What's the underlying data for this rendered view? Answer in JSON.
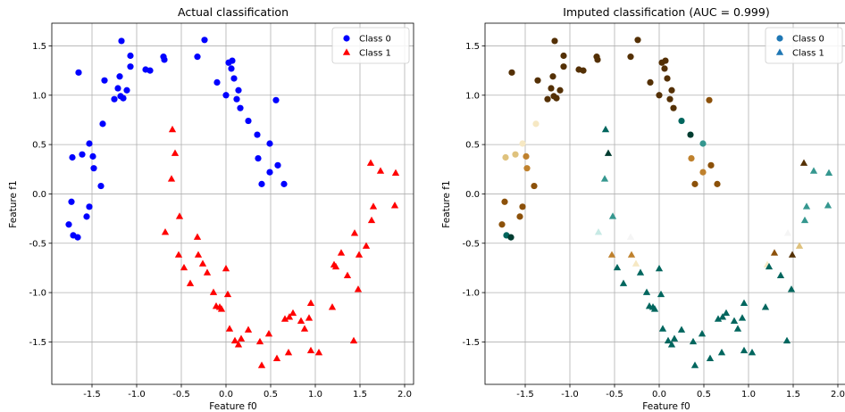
{
  "chart_data": [
    {
      "type": "scatter",
      "title": "Actual classification",
      "xlabel": "Feature f0",
      "ylabel": "Feature f1",
      "xlim": [
        -1.95,
        2.1
      ],
      "ylim": [
        -1.93,
        1.73
      ],
      "xticks": [
        "-1.5",
        "-1.0",
        "-0.5",
        "0.0",
        "0.5",
        "1.0",
        "1.5",
        "2.0"
      ],
      "yticks": [
        "1.5",
        "1.0",
        "0.5",
        "0.0",
        "-0.5",
        "-1.0",
        "-1.5"
      ],
      "grid": true,
      "legend_position": "top-right",
      "series": [
        {
          "name": "Class 0",
          "marker": "circle",
          "color": "#0000ff",
          "points": [
            [
              -1.17,
              1.55
            ],
            [
              -1.07,
              1.4
            ],
            [
              -0.9,
              1.26
            ],
            [
              -0.85,
              1.25
            ],
            [
              -0.7,
              1.39
            ],
            [
              -0.69,
              1.36
            ],
            [
              -0.32,
              1.39
            ],
            [
              -0.24,
              1.56
            ],
            [
              0.03,
              1.33
            ],
            [
              0.07,
              1.35
            ],
            [
              0.06,
              1.27
            ],
            [
              0.09,
              1.17
            ],
            [
              0.14,
              1.05
            ],
            [
              0.0,
              1.0
            ],
            [
              0.12,
              0.96
            ],
            [
              0.16,
              0.87
            ],
            [
              0.25,
              0.74
            ],
            [
              0.35,
              0.6
            ],
            [
              0.49,
              0.51
            ],
            [
              0.56,
              0.95
            ],
            [
              0.58,
              0.29
            ],
            [
              0.49,
              0.22
            ],
            [
              0.65,
              0.1
            ],
            [
              0.36,
              0.36
            ],
            [
              0.4,
              0.1
            ],
            [
              -0.1,
              1.13
            ],
            [
              -1.07,
              1.29
            ],
            [
              -1.21,
              1.07
            ],
            [
              -1.19,
              1.19
            ],
            [
              -1.36,
              1.15
            ],
            [
              -1.18,
              0.99
            ],
            [
              -1.15,
              0.97
            ],
            [
              -1.11,
              1.05
            ],
            [
              -1.65,
              1.23
            ],
            [
              -1.38,
              0.71
            ],
            [
              -1.53,
              0.51
            ],
            [
              -1.61,
              0.4
            ],
            [
              -1.49,
              0.38
            ],
            [
              -1.72,
              0.37
            ],
            [
              -1.48,
              0.26
            ],
            [
              -1.4,
              0.08
            ],
            [
              -1.73,
              -0.08
            ],
            [
              -1.53,
              -0.13
            ],
            [
              -1.56,
              -0.23
            ],
            [
              -1.76,
              -0.31
            ],
            [
              -1.71,
              -0.42
            ],
            [
              -1.66,
              -0.44
            ],
            [
              -1.25,
              0.96
            ]
          ]
        },
        {
          "name": "Class 1",
          "marker": "triangle",
          "color": "#ff0000",
          "points": [
            [
              -0.6,
              0.65
            ],
            [
              -0.57,
              0.41
            ],
            [
              -0.61,
              0.15
            ],
            [
              -0.52,
              -0.23
            ],
            [
              -0.68,
              -0.39
            ],
            [
              -0.53,
              -0.62
            ],
            [
              -0.32,
              -0.44
            ],
            [
              -0.31,
              -0.62
            ],
            [
              -0.47,
              -0.75
            ],
            [
              -0.4,
              -0.91
            ],
            [
              -0.26,
              -0.71
            ],
            [
              -0.21,
              -0.8
            ],
            [
              -0.14,
              -1.0
            ],
            [
              -0.11,
              -1.14
            ],
            [
              -0.07,
              -1.15
            ],
            [
              -0.05,
              -1.17
            ],
            [
              0.02,
              -1.02
            ],
            [
              0.0,
              -0.76
            ],
            [
              0.04,
              -1.37
            ],
            [
              0.1,
              -1.49
            ],
            [
              0.14,
              -1.53
            ],
            [
              0.17,
              -1.47
            ],
            [
              0.25,
              -1.38
            ],
            [
              0.38,
              -1.5
            ],
            [
              0.4,
              -1.74
            ],
            [
              0.48,
              -1.42
            ],
            [
              0.57,
              -1.67
            ],
            [
              0.66,
              -1.27
            ],
            [
              0.71,
              -1.25
            ],
            [
              0.75,
              -1.21
            ],
            [
              0.7,
              -1.61
            ],
            [
              0.84,
              -1.29
            ],
            [
              0.93,
              -1.26
            ],
            [
              0.88,
              -1.37
            ],
            [
              0.95,
              -1.11
            ],
            [
              0.95,
              -1.59
            ],
            [
              1.04,
              -1.61
            ],
            [
              1.19,
              -1.15
            ],
            [
              1.21,
              -0.72
            ],
            [
              1.23,
              -0.74
            ],
            [
              1.29,
              -0.6
            ],
            [
              1.36,
              -0.83
            ],
            [
              1.44,
              -0.4
            ],
            [
              1.48,
              -0.97
            ],
            [
              1.49,
              -0.62
            ],
            [
              1.57,
              -0.53
            ],
            [
              1.63,
              -0.27
            ],
            [
              1.65,
              -0.13
            ],
            [
              1.43,
              -1.49
            ],
            [
              1.62,
              0.31
            ],
            [
              1.73,
              0.23
            ],
            [
              1.9,
              0.21
            ],
            [
              1.89,
              -0.12
            ]
          ]
        }
      ]
    },
    {
      "type": "scatter",
      "title": "Imputed classification (AUC = 0.999)",
      "xlabel": "Feature f0",
      "ylabel": "Feature f1",
      "xlim": [
        -1.95,
        2.1
      ],
      "ylim": [
        -1.93,
        1.73
      ],
      "xticks": [
        "-1.5",
        "-1.0",
        "-0.5",
        "0.0",
        "0.5",
        "1.0",
        "1.5",
        "2.0"
      ],
      "yticks": [
        "1.5",
        "1.0",
        "0.5",
        "0.0",
        "-0.5",
        "-1.0",
        "-1.5"
      ],
      "grid": true,
      "legend_position": "top-right",
      "colors": {
        "dark_brown": "#543005",
        "mid_brown": "#8c510a",
        "tan": "#dfc27d",
        "light_tan": "#f6e8c3",
        "pale": "#f5f5f5",
        "light_teal": "#c7eae5",
        "mid_teal": "#35978f",
        "teal": "#01665e",
        "dark_teal": "#003c30",
        "legend_class0": "#1f77b4",
        "legend_class1": "#1f77b4"
      },
      "series": [
        {
          "name": "Class 0",
          "marker": "circle",
          "legend_color": "#1f77b4",
          "points": [
            [
              -1.17,
              1.55,
              "#543005"
            ],
            [
              -1.07,
              1.4,
              "#543005"
            ],
            [
              -0.9,
              1.26,
              "#543005"
            ],
            [
              -0.85,
              1.25,
              "#543005"
            ],
            [
              -0.7,
              1.39,
              "#543005"
            ],
            [
              -0.69,
              1.36,
              "#543005"
            ],
            [
              -0.32,
              1.39,
              "#543005"
            ],
            [
              -0.24,
              1.56,
              "#543005"
            ],
            [
              0.03,
              1.33,
              "#543005"
            ],
            [
              0.07,
              1.35,
              "#543005"
            ],
            [
              0.06,
              1.27,
              "#543005"
            ],
            [
              0.09,
              1.17,
              "#543005"
            ],
            [
              0.14,
              1.05,
              "#543005"
            ],
            [
              0.0,
              1.0,
              "#543005"
            ],
            [
              0.12,
              0.96,
              "#543005"
            ],
            [
              0.16,
              0.87,
              "#543005"
            ],
            [
              0.25,
              0.74,
              "#01665e"
            ],
            [
              0.35,
              0.6,
              "#003c30"
            ],
            [
              0.49,
              0.51,
              "#35978f"
            ],
            [
              0.56,
              0.95,
              "#8c510a"
            ],
            [
              0.58,
              0.29,
              "#8c510a"
            ],
            [
              0.49,
              0.22,
              "#bf812d"
            ],
            [
              0.65,
              0.1,
              "#8c510a"
            ],
            [
              0.36,
              0.36,
              "#bf812d"
            ],
            [
              0.4,
              0.1,
              "#8c510a"
            ],
            [
              -0.1,
              1.13,
              "#543005"
            ],
            [
              -1.07,
              1.29,
              "#543005"
            ],
            [
              -1.21,
              1.07,
              "#543005"
            ],
            [
              -1.19,
              1.19,
              "#543005"
            ],
            [
              -1.36,
              1.15,
              "#543005"
            ],
            [
              -1.18,
              0.99,
              "#543005"
            ],
            [
              -1.15,
              0.97,
              "#543005"
            ],
            [
              -1.11,
              1.05,
              "#543005"
            ],
            [
              -1.65,
              1.23,
              "#543005"
            ],
            [
              -1.38,
              0.71,
              "#f6e8c3"
            ],
            [
              -1.53,
              0.51,
              "#f6e8c3"
            ],
            [
              -1.61,
              0.4,
              "#dfc27d"
            ],
            [
              -1.49,
              0.38,
              "#bf812d"
            ],
            [
              -1.72,
              0.37,
              "#dfc27d"
            ],
            [
              -1.48,
              0.26,
              "#bf812d"
            ],
            [
              -1.4,
              0.08,
              "#8c510a"
            ],
            [
              -1.73,
              -0.08,
              "#8c510a"
            ],
            [
              -1.53,
              -0.13,
              "#8c510a"
            ],
            [
              -1.56,
              -0.23,
              "#8c510a"
            ],
            [
              -1.76,
              -0.31,
              "#8c510a"
            ],
            [
              -1.71,
              -0.42,
              "#01665e"
            ],
            [
              -1.66,
              -0.44,
              "#003c30"
            ],
            [
              -1.25,
              0.96,
              "#543005"
            ]
          ]
        },
        {
          "name": "Class 1",
          "marker": "triangle",
          "legend_color": "#1f77b4",
          "points": [
            [
              -0.6,
              0.65,
              "#01665e"
            ],
            [
              -0.57,
              0.41,
              "#003c30"
            ],
            [
              -0.61,
              0.15,
              "#35978f"
            ],
            [
              -0.52,
              -0.23,
              "#35978f"
            ],
            [
              -0.68,
              -0.39,
              "#c7eae5"
            ],
            [
              -0.53,
              -0.62,
              "#bf812d"
            ],
            [
              -0.32,
              -0.44,
              "#f5f5f5"
            ],
            [
              -0.31,
              -0.62,
              "#bf812d"
            ],
            [
              -0.47,
              -0.75,
              "#01665e"
            ],
            [
              -0.4,
              -0.91,
              "#01665e"
            ],
            [
              -0.26,
              -0.71,
              "#f6e8c3"
            ],
            [
              -0.21,
              -0.8,
              "#01665e"
            ],
            [
              -0.14,
              -1.0,
              "#01665e"
            ],
            [
              -0.11,
              -1.14,
              "#01665e"
            ],
            [
              -0.07,
              -1.15,
              "#01665e"
            ],
            [
              -0.05,
              -1.17,
              "#01665e"
            ],
            [
              0.02,
              -1.02,
              "#01665e"
            ],
            [
              0.0,
              -0.76,
              "#01665e"
            ],
            [
              0.04,
              -1.37,
              "#01665e"
            ],
            [
              0.1,
              -1.49,
              "#01665e"
            ],
            [
              0.14,
              -1.53,
              "#01665e"
            ],
            [
              0.17,
              -1.47,
              "#01665e"
            ],
            [
              0.25,
              -1.38,
              "#01665e"
            ],
            [
              0.38,
              -1.5,
              "#01665e"
            ],
            [
              0.4,
              -1.74,
              "#01665e"
            ],
            [
              0.48,
              -1.42,
              "#01665e"
            ],
            [
              0.57,
              -1.67,
              "#01665e"
            ],
            [
              0.66,
              -1.27,
              "#01665e"
            ],
            [
              0.71,
              -1.25,
              "#01665e"
            ],
            [
              0.75,
              -1.21,
              "#01665e"
            ],
            [
              0.7,
              -1.61,
              "#01665e"
            ],
            [
              0.84,
              -1.29,
              "#01665e"
            ],
            [
              0.93,
              -1.26,
              "#01665e"
            ],
            [
              0.88,
              -1.37,
              "#01665e"
            ],
            [
              0.95,
              -1.11,
              "#01665e"
            ],
            [
              0.95,
              -1.59,
              "#01665e"
            ],
            [
              1.04,
              -1.61,
              "#01665e"
            ],
            [
              1.19,
              -1.15,
              "#01665e"
            ],
            [
              1.21,
              -0.72,
              "#f6e8c3"
            ],
            [
              1.23,
              -0.74,
              "#01665e"
            ],
            [
              1.29,
              -0.6,
              "#8c510a"
            ],
            [
              1.36,
              -0.83,
              "#01665e"
            ],
            [
              1.44,
              -0.4,
              "#f5f5f5"
            ],
            [
              1.48,
              -0.97,
              "#01665e"
            ],
            [
              1.49,
              -0.62,
              "#543005"
            ],
            [
              1.57,
              -0.53,
              "#dfc27d"
            ],
            [
              1.63,
              -0.27,
              "#35978f"
            ],
            [
              1.65,
              -0.13,
              "#35978f"
            ],
            [
              1.43,
              -1.49,
              "#01665e"
            ],
            [
              1.62,
              0.31,
              "#543005"
            ],
            [
              1.73,
              0.23,
              "#35978f"
            ],
            [
              1.9,
              0.21,
              "#35978f"
            ],
            [
              1.89,
              -0.12,
              "#35978f"
            ]
          ]
        }
      ]
    }
  ]
}
